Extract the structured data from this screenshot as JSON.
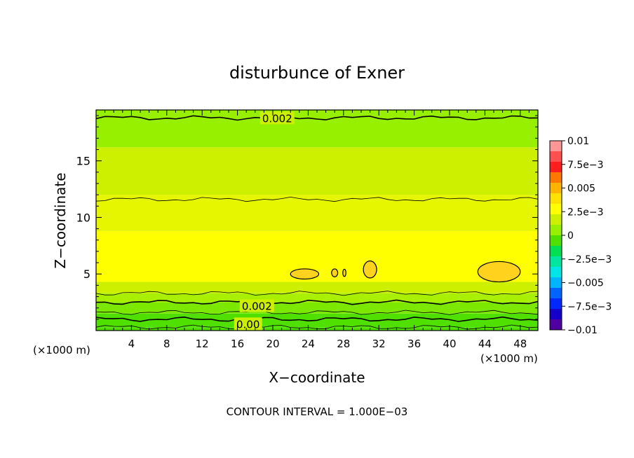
{
  "chart_data": {
    "type": "heatmap",
    "title": "disturbunce of Exner",
    "xlabel": "X−coordinate",
    "ylabel": "Z−coordinate",
    "x_unit_left": "(×1000 m)",
    "x_unit_right": "(×1000 m)",
    "xlim": [
      0,
      50
    ],
    "ylim": [
      0,
      19.5
    ],
    "x_ticks": [
      4,
      8,
      12,
      16,
      20,
      24,
      28,
      32,
      36,
      40,
      44,
      48
    ],
    "x_tick_labels": [
      "4",
      "8",
      "12",
      "16",
      "20",
      "24",
      "28",
      "32",
      "36",
      "40",
      "44",
      "48"
    ],
    "y_ticks": [
      5,
      10,
      15
    ],
    "y_tick_labels": [
      "5",
      "10",
      "15"
    ],
    "contour_labels": [
      {
        "text": "0.002",
        "x": 20.5,
        "z": 18.8
      },
      {
        "text": "0.002",
        "x": 18.2,
        "z": 2.2
      },
      {
        "text": "0.00",
        "x": 17.2,
        "z": 0.6
      }
    ],
    "contour_interval_text": "CONTOUR INTERVAL = 1.000E−03",
    "colorbar": {
      "range": [
        -0.01,
        0.01
      ],
      "labels": [
        "0.01",
        "7.5e−3",
        "0.005",
        "2.5e−3",
        "0",
        "−2.5e−3",
        "−0.005",
        "−7.5e−3",
        "−0.01"
      ],
      "colors_top_to_bottom": [
        "#ff9696",
        "#ff5050",
        "#ff1e1e",
        "#ff7800",
        "#ffb400",
        "#ffe100",
        "#ffff00",
        "#ccf000",
        "#96f000",
        "#50e000",
        "#00e050",
        "#00e6a0",
        "#00e6e6",
        "#00b4ff",
        "#0064ff",
        "#0028ff",
        "#1400c8",
        "#5000a0"
      ]
    },
    "bands": [
      {
        "from": 0,
        "to": 0.3,
        "color": "#50e000"
      },
      {
        "from": 0.3,
        "to": 1.5,
        "color": "#50e000"
      },
      {
        "from": 1.5,
        "to": 2.5,
        "color": "#7ce800"
      },
      {
        "from": 2.5,
        "to": 3.3,
        "color": "#a8f000"
      },
      {
        "from": 3.3,
        "to": 4.3,
        "color": "#ccf000"
      },
      {
        "from": 4.3,
        "to": 8.8,
        "color": "#ffff00"
      },
      {
        "from": 8.8,
        "to": 12.0,
        "color": "#e6f500"
      },
      {
        "from": 12.0,
        "to": 16.2,
        "color": "#ccf000"
      },
      {
        "from": 16.2,
        "to": 19.5,
        "color": "#96f000"
      }
    ],
    "contours_z": [
      0.3,
      1.0,
      1.6,
      2.5,
      3.3,
      11.6,
      18.8
    ],
    "blobs": [
      {
        "cx": 23.6,
        "cz": 5.0,
        "rx": 1.6,
        "rz": 0.45
      },
      {
        "cx": 27.0,
        "cz": 5.1,
        "rx": 0.35,
        "rz": 0.35
      },
      {
        "cx": 28.1,
        "cz": 5.1,
        "rx": 0.18,
        "rz": 0.32
      },
      {
        "cx": 31.0,
        "cz": 5.4,
        "rx": 0.75,
        "rz": 0.75
      },
      {
        "cx": 45.6,
        "cz": 5.2,
        "rx": 2.4,
        "rz": 0.9
      }
    ],
    "grid": false
  }
}
